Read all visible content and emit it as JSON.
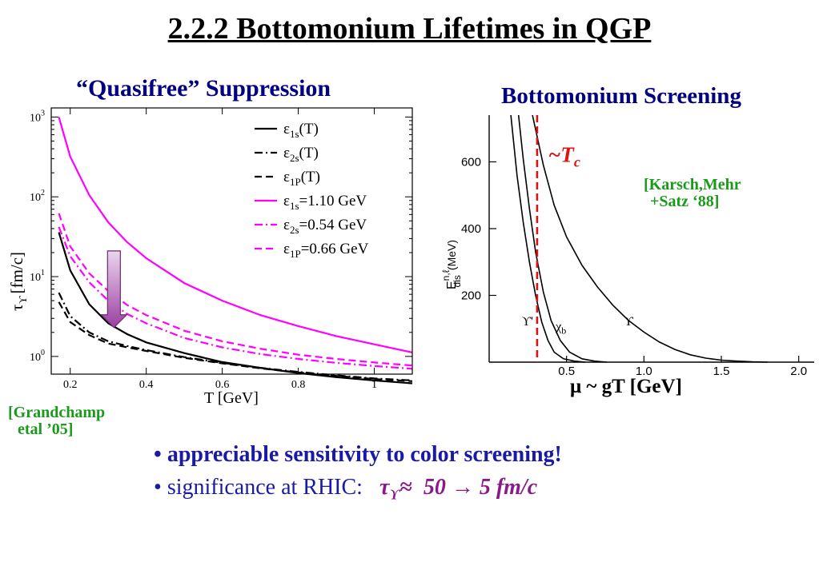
{
  "slide": {
    "title": "2.2.2 Bottomonium Lifetimes in QGP",
    "left_heading": "“Quasifree” Suppression",
    "right_heading": "Bottomonium Screening",
    "left_citation": [
      "[Grandchamp",
      "etal ’05]"
    ],
    "right_citation": [
      "[Karsch,Mehr",
      "+Satz ‘88]"
    ],
    "right_xlabel": "μ ~ gT   [GeV]",
    "tc_label": "~T",
    "tc_sub": "c",
    "bullets": {
      "b1_marker": "•",
      "b1_text": "appreciable sensitivity to color screening!",
      "b2_marker": "•",
      "b2_text": "significance at RHIC:",
      "b2_tau": "τ",
      "b2_tau_sub": "ϒ",
      "b2_approx": "≈",
      "b2_values": "50 → 5 fm/c"
    }
  },
  "chart_data": [
    {
      "type": "line",
      "xlabel": "T [GeV]",
      "ylabel": "τ",
      "ylabel_sub": "ϒ",
      "ylabel_unit": "[fm/c]",
      "y_scale": "log",
      "xlim": [
        0.15,
        1.1
      ],
      "ylim": [
        0.6,
        1300
      ],
      "x_ticks": [
        {
          "v": 0.2,
          "label": "0.2"
        },
        {
          "v": 0.4,
          "label": "0.4"
        },
        {
          "v": 0.6,
          "label": "0.6"
        },
        {
          "v": 0.8,
          "label": "0.8"
        },
        {
          "v": 1.0,
          "label": "1"
        }
      ],
      "y_ticks": [
        {
          "v": 1,
          "label": "10",
          "exp": "0"
        },
        {
          "v": 10,
          "label": "10",
          "exp": "1"
        },
        {
          "v": 100,
          "label": "10",
          "exp": "2"
        },
        {
          "v": 1000,
          "label": "10",
          "exp": "3"
        }
      ],
      "legend_position": "top-right",
      "series": [
        {
          "id": "s1",
          "name": "ε",
          "sub": "1s",
          "suffix": "(T)",
          "color": "#000000",
          "dash": "solid",
          "x": [
            0.17,
            0.2,
            0.25,
            0.3,
            0.35,
            0.4,
            0.5,
            0.6,
            0.7,
            0.8,
            0.9,
            1.0,
            1.1
          ],
          "y": [
            36,
            12,
            4.5,
            2.6,
            1.9,
            1.5,
            1.1,
            0.85,
            0.72,
            0.62,
            0.55,
            0.5,
            0.46
          ]
        },
        {
          "id": "s2",
          "name": "ε",
          "sub": "2s",
          "suffix": "(T)",
          "color": "#000000",
          "dash": "dashdot",
          "x": [
            0.17,
            0.2,
            0.25,
            0.3,
            0.35,
            0.4,
            0.5,
            0.6,
            0.7,
            0.8,
            0.9,
            1.0,
            1.1
          ],
          "y": [
            6.3,
            3.2,
            2.0,
            1.55,
            1.35,
            1.2,
            0.98,
            0.83,
            0.72,
            0.64,
            0.58,
            0.53,
            0.5
          ]
        },
        {
          "id": "s3",
          "name": "ε",
          "sub": "1P",
          "suffix": "(T)",
          "color": "#000000",
          "dash": "dashed",
          "x": [
            0.17,
            0.2,
            0.25,
            0.3,
            0.35,
            0.4,
            0.5,
            0.6,
            0.7,
            0.8,
            0.9,
            1.0,
            1.1
          ],
          "y": [
            4.8,
            2.7,
            1.85,
            1.45,
            1.3,
            1.17,
            0.96,
            0.82,
            0.71,
            0.63,
            0.57,
            0.52,
            0.49
          ]
        },
        {
          "id": "s4",
          "name": "ε",
          "sub": "1s",
          "suffix": "=1.10 GeV",
          "color": "#ff00ff",
          "dash": "solid",
          "x": [
            0.17,
            0.2,
            0.25,
            0.3,
            0.35,
            0.4,
            0.5,
            0.6,
            0.7,
            0.8,
            0.9,
            1.0,
            1.1
          ],
          "y": [
            1000,
            320,
            105,
            48,
            27,
            17,
            8.3,
            5.0,
            3.3,
            2.4,
            1.8,
            1.42,
            1.12
          ]
        },
        {
          "id": "s5",
          "name": "ε",
          "sub": "2s",
          "suffix": "=0.54 GeV",
          "color": "#ff00ff",
          "dash": "dashdot",
          "x": [
            0.17,
            0.2,
            0.25,
            0.3,
            0.35,
            0.4,
            0.5,
            0.6,
            0.7,
            0.8,
            0.9,
            1.0,
            1.1
          ],
          "y": [
            42,
            18,
            8.5,
            5.0,
            3.4,
            2.6,
            1.7,
            1.3,
            1.07,
            0.93,
            0.83,
            0.76,
            0.7
          ]
        },
        {
          "id": "s6",
          "name": "ε",
          "sub": "1P",
          "suffix": "=0.66 GeV",
          "color": "#ff00ff",
          "dash": "dashed",
          "x": [
            0.17,
            0.2,
            0.25,
            0.3,
            0.35,
            0.4,
            0.5,
            0.6,
            0.7,
            0.8,
            0.9,
            1.0,
            1.1
          ],
          "y": [
            62,
            24,
            11,
            6.6,
            4.4,
            3.3,
            2.1,
            1.55,
            1.25,
            1.05,
            0.93,
            0.84,
            0.77
          ]
        }
      ],
      "arrow": {
        "x": 0.315,
        "y_from": 21,
        "y_to": 2.3,
        "color": "#9c3fa0"
      }
    },
    {
      "type": "line",
      "xlabel": "μ ~ gT   [GeV]",
      "ylabel": "E",
      "ylabel_sup": "n,ℓ",
      "ylabel_sub": "dis",
      "ylabel_unit": "(MeV)",
      "xlim": [
        0.0,
        2.1
      ],
      "ylim": [
        0,
        740
      ],
      "x_ticks": [
        {
          "v": 0.5,
          "label": "0.5"
        },
        {
          "v": 1.0,
          "label": "1.0"
        },
        {
          "v": 1.5,
          "label": "1.5"
        },
        {
          "v": 2.0,
          "label": "2.0"
        }
      ],
      "y_ticks": [
        {
          "v": 200,
          "label": "200"
        },
        {
          "v": 400,
          "label": "400"
        },
        {
          "v": 600,
          "label": "600"
        }
      ],
      "tc_x": 0.31,
      "series": [
        {
          "id": "r1",
          "label": "ϒ'",
          "color": "#000000",
          "x": [
            0.14,
            0.18,
            0.22,
            0.26,
            0.3,
            0.34,
            0.38,
            0.42,
            0.48,
            0.55,
            0.62
          ],
          "y": [
            740,
            560,
            420,
            300,
            200,
            120,
            65,
            30,
            10,
            3,
            0
          ],
          "label_at": [
            0.21,
            110
          ]
        },
        {
          "id": "r2",
          "label": "χ",
          "label_sub": "b",
          "color": "#000000",
          "x": [
            0.19,
            0.22,
            0.26,
            0.3,
            0.35,
            0.4,
            0.46,
            0.52,
            0.6,
            0.68,
            0.76
          ],
          "y": [
            740,
            610,
            460,
            330,
            210,
            125,
            65,
            30,
            10,
            3,
            0
          ],
          "label_at": [
            0.43,
            95
          ]
        },
        {
          "id": "r3",
          "label": "ϒ",
          "color": "#000000",
          "x": [
            0.28,
            0.35,
            0.42,
            0.5,
            0.6,
            0.7,
            0.8,
            0.9,
            1.0,
            1.1,
            1.2,
            1.3,
            1.4,
            1.5,
            1.6,
            1.7,
            1.8
          ],
          "y": [
            740,
            590,
            470,
            375,
            290,
            225,
            170,
            125,
            90,
            60,
            38,
            22,
            12,
            6,
            3,
            1,
            0
          ],
          "label_at": [
            0.87,
            110
          ]
        }
      ]
    }
  ]
}
